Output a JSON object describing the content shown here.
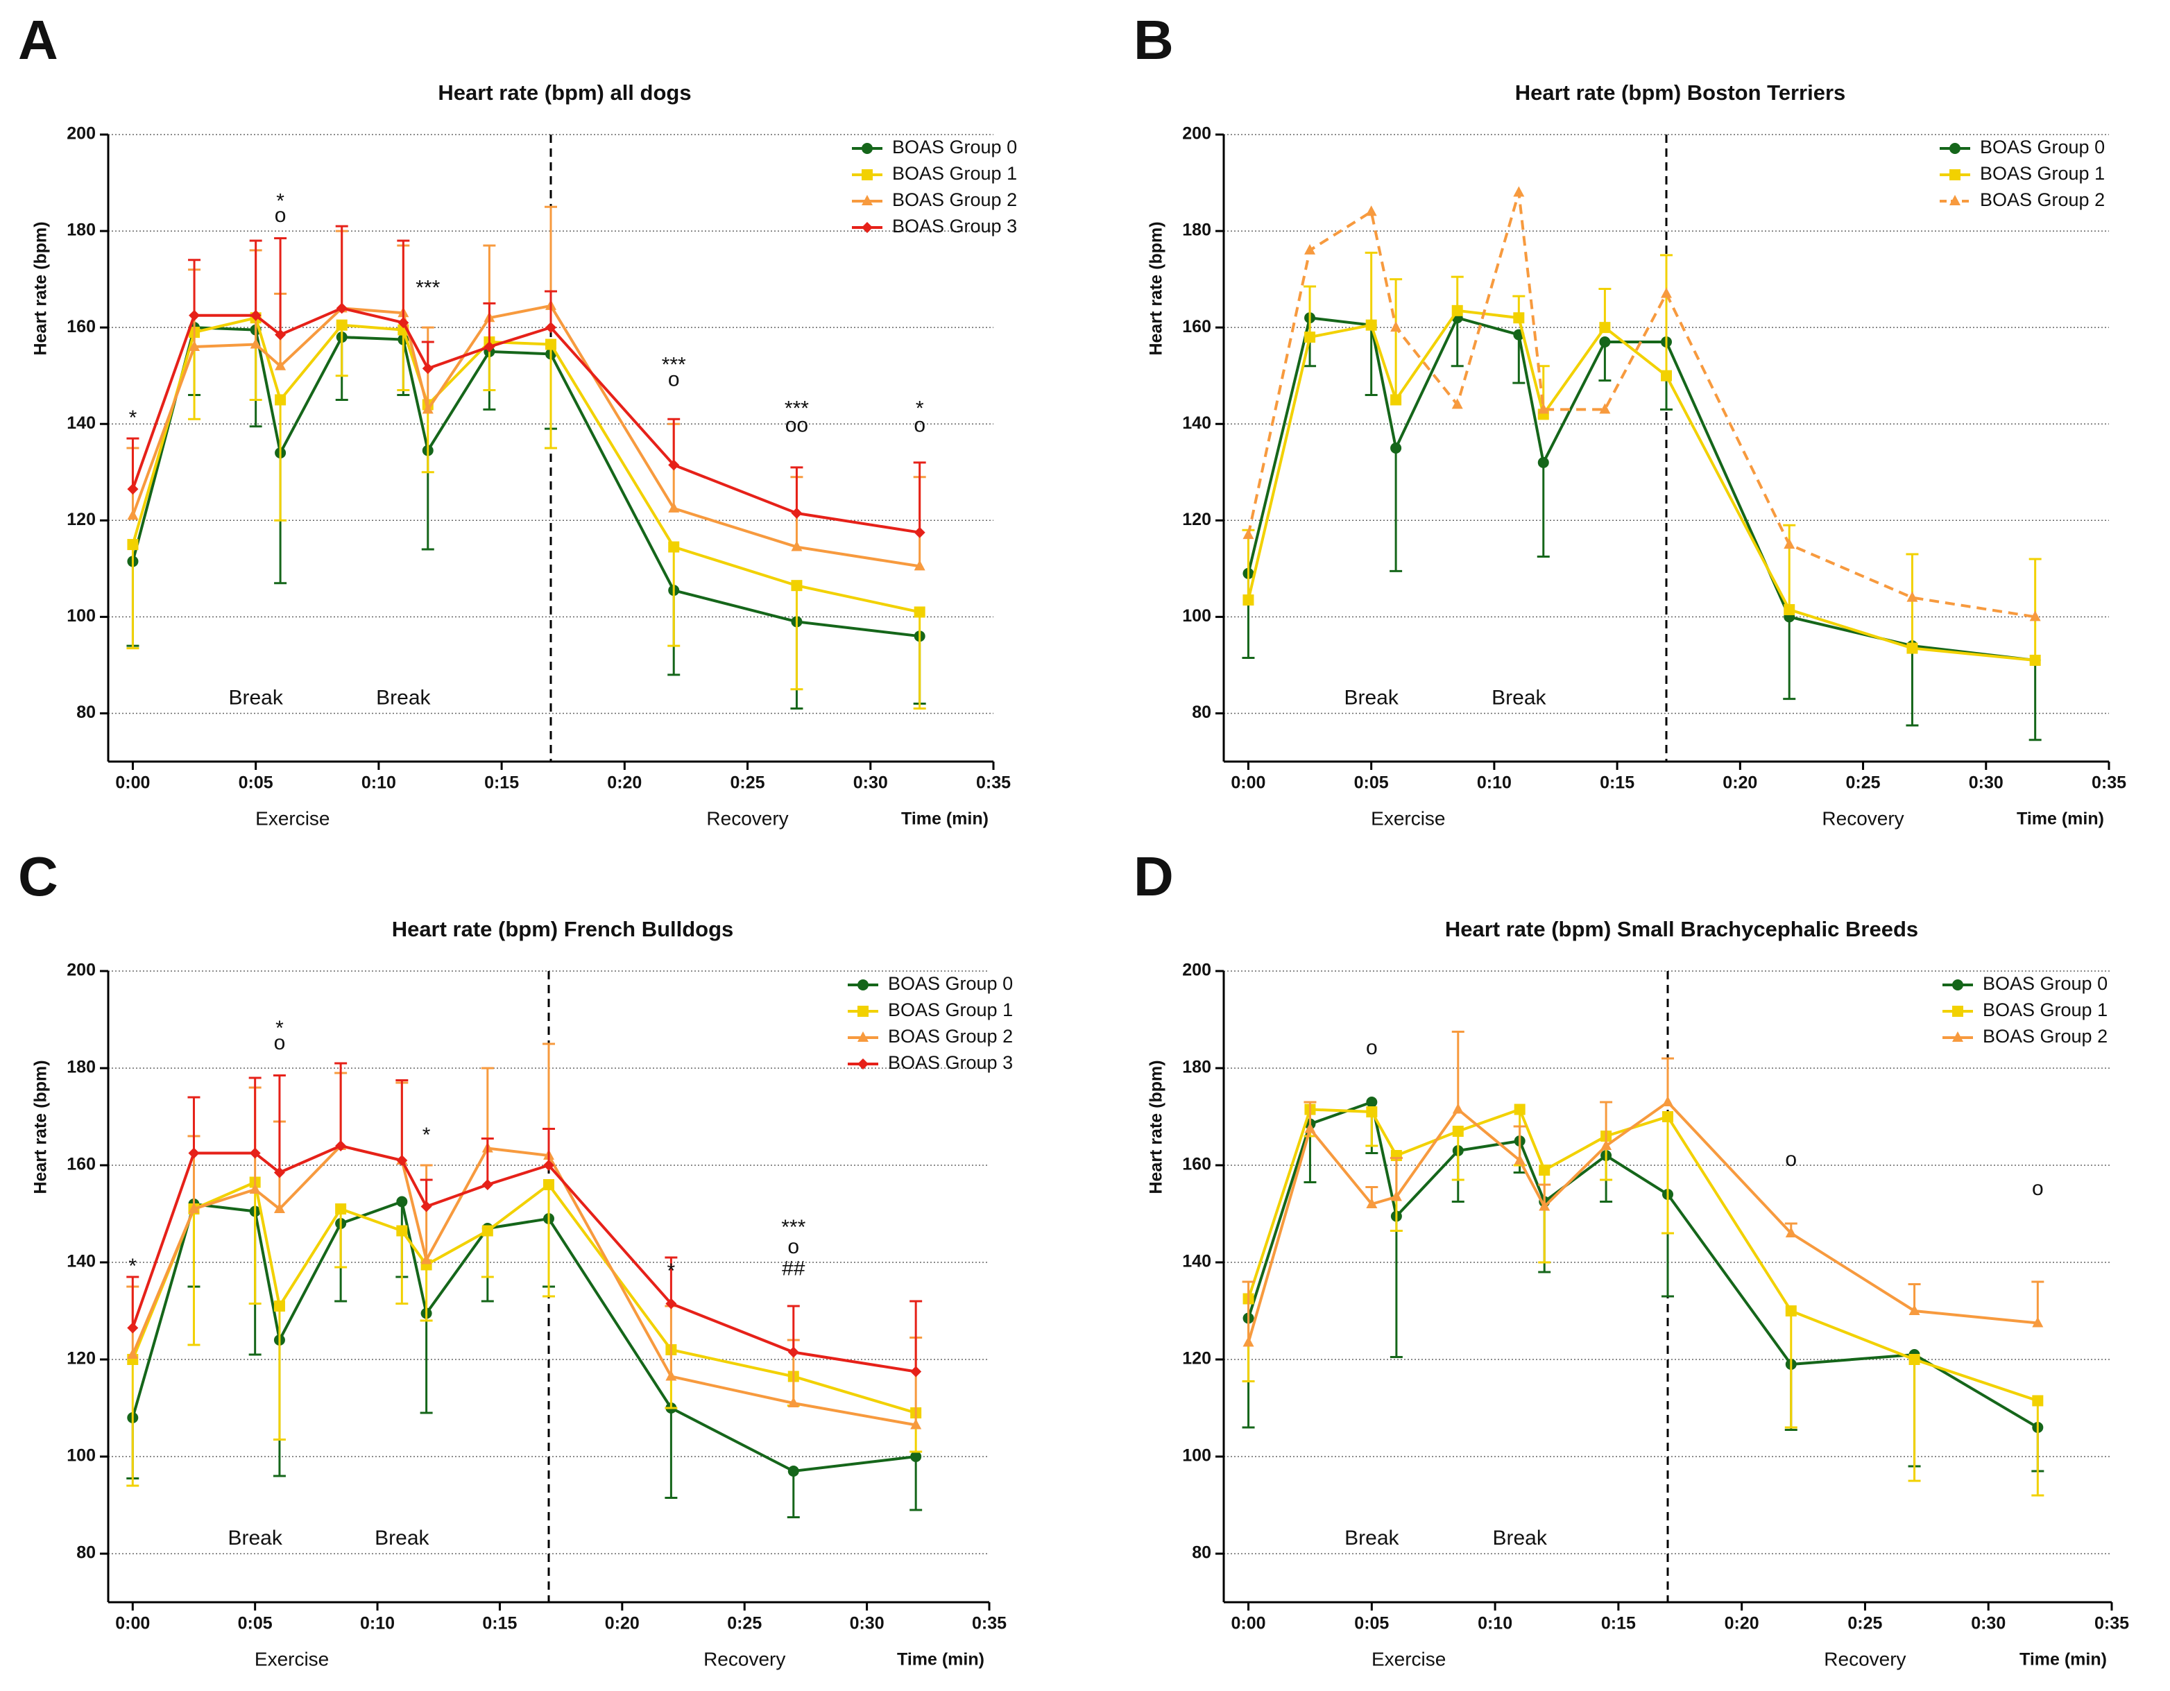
{
  "chart_data": [
    {
      "type": "line",
      "panel": "A",
      "title": "Heart rate (bpm) all dogs",
      "ylabel": "Heart rate (bpm)",
      "xlabel": "Time (min)",
      "grid": true,
      "legend": "upper right",
      "x": [
        0,
        2.5,
        5,
        6,
        8.5,
        11,
        12,
        14.5,
        17,
        22,
        27,
        32
      ],
      "divider_x": 17,
      "xlim": [
        -1,
        35
      ],
      "xticks": [
        {
          "value": 0,
          "label": "0:00"
        },
        {
          "value": 5,
          "label": "0:05"
        },
        {
          "value": 10,
          "label": "0:10"
        },
        {
          "value": 15,
          "label": "0:15"
        },
        {
          "value": 20,
          "label": "0:20"
        },
        {
          "value": 25,
          "label": "0:25"
        },
        {
          "value": 30,
          "label": "0:30"
        },
        {
          "value": 35,
          "label": "0:35"
        }
      ],
      "ylim": [
        70,
        200
      ],
      "yticks": [
        80,
        100,
        120,
        140,
        160,
        180,
        200
      ],
      "phase_labels": [
        {
          "text": "Exercise",
          "x": 6.5
        },
        {
          "text": "Recovery",
          "x": 25
        }
      ],
      "series": [
        {
          "name": "BOAS Group 0",
          "color": "#15661a",
          "marker": "circle",
          "error_direction": "down",
          "values": [
            111.5,
            160,
            159.5,
            134,
            158,
            157.5,
            134.5,
            155,
            154.5,
            105.5,
            99,
            96
          ],
          "errors": [
            17.5,
            14,
            20,
            27,
            13,
            11.5,
            20.5,
            12,
            15.5,
            17.5,
            18,
            14
          ]
        },
        {
          "name": "BOAS Group 1",
          "color": "#f2d100",
          "marker": "square",
          "error_direction": "down",
          "values": [
            115,
            159,
            162,
            145,
            160.5,
            159.5,
            144,
            157,
            156.5,
            114.5,
            106.5,
            101
          ],
          "errors": [
            21.5,
            18,
            17,
            25,
            10.5,
            12.5,
            14,
            10,
            21.5,
            20.5,
            21.5,
            20
          ]
        },
        {
          "name": "BOAS Group 2",
          "color": "#f79a3e",
          "marker": "triangle",
          "error_direction": "up",
          "values": [
            121,
            156,
            156.5,
            152,
            164,
            163,
            143,
            162,
            164.5,
            122.5,
            114.5,
            110.5
          ],
          "errors": [
            14,
            16,
            19.5,
            15,
            16,
            14,
            17,
            15,
            20.5,
            17.5,
            14.5,
            18.5
          ]
        },
        {
          "name": "BOAS Group 3",
          "color": "#e62119",
          "marker": "diamond",
          "error_direction": "up",
          "values": [
            126.5,
            162.5,
            162.5,
            158.5,
            164,
            161,
            151.5,
            156,
            160,
            131.5,
            121.5,
            117.5
          ],
          "errors": [
            10.5,
            11.5,
            15.5,
            20,
            17,
            17,
            5.5,
            9,
            7.5,
            9.5,
            9.5,
            14.5
          ]
        }
      ],
      "annotations": [
        {
          "text": "*",
          "x": 0,
          "y": 141
        },
        {
          "text": "*",
          "x": 6,
          "y": 186
        },
        {
          "text": "o",
          "x": 6,
          "y": 183
        },
        {
          "text": "***",
          "x": 12,
          "y": 168
        },
        {
          "text": "***",
          "x": 22,
          "y": 152
        },
        {
          "text": "o",
          "x": 22,
          "y": 149
        },
        {
          "text": "***",
          "x": 27,
          "y": 143
        },
        {
          "text": "oo",
          "x": 27,
          "y": 139.5
        },
        {
          "text": "*",
          "x": 32,
          "y": 143
        },
        {
          "text": "o",
          "x": 32,
          "y": 139.5
        },
        {
          "text": "Break",
          "x": 5,
          "y": 83
        },
        {
          "text": "Break",
          "x": 11,
          "y": 83
        }
      ]
    },
    {
      "type": "line",
      "panel": "B",
      "title": "Heart rate (bpm) Boston Terriers",
      "ylabel": "Heart rate (bpm)",
      "xlabel": "Time (min)",
      "grid": true,
      "legend": "upper right",
      "x": [
        0,
        2.5,
        5,
        6,
        8.5,
        11,
        12,
        14.5,
        17,
        22,
        27,
        32
      ],
      "divider_x": 17,
      "xlim": [
        -1,
        35
      ],
      "xticks": [
        {
          "value": 0,
          "label": "0:00"
        },
        {
          "value": 5,
          "label": "0:05"
        },
        {
          "value": 10,
          "label": "0:10"
        },
        {
          "value": 15,
          "label": "0:15"
        },
        {
          "value": 20,
          "label": "0:20"
        },
        {
          "value": 25,
          "label": "0:25"
        },
        {
          "value": 30,
          "label": "0:30"
        },
        {
          "value": 35,
          "label": "0:35"
        }
      ],
      "ylim": [
        70,
        200
      ],
      "yticks": [
        80,
        100,
        120,
        140,
        160,
        180,
        200
      ],
      "phase_labels": [
        {
          "text": "Exercise",
          "x": 6.5
        },
        {
          "text": "Recovery",
          "x": 25
        }
      ],
      "series": [
        {
          "name": "BOAS Group 0",
          "color": "#15661a",
          "marker": "circle",
          "error_direction": "down",
          "values": [
            109,
            162,
            160.5,
            135,
            162,
            158.5,
            132,
            157,
            157,
            100,
            94,
            91
          ],
          "errors": [
            17.5,
            10,
            14.5,
            25.5,
            10,
            10,
            19.5,
            8,
            14,
            17,
            16.5,
            16.5
          ]
        },
        {
          "name": "BOAS Group 1",
          "color": "#f2d100",
          "marker": "square",
          "error_direction": "up",
          "values": [
            103.5,
            158,
            160.5,
            145,
            163.5,
            162,
            142,
            160,
            150,
            101.5,
            93.5,
            91
          ],
          "errors": [
            14.5,
            10.5,
            15,
            25,
            7,
            4.5,
            10,
            8,
            25,
            17.5,
            19.5,
            21
          ]
        },
        {
          "name": "BOAS Group 2",
          "color": "#f79a3e",
          "marker": "triangle",
          "dashed": true,
          "values": [
            117,
            176,
            184,
            160,
            144,
            188,
            143,
            143,
            167,
            115,
            104,
            100
          ]
        }
      ],
      "annotations": [
        {
          "text": "Break",
          "x": 5,
          "y": 83
        },
        {
          "text": "Break",
          "x": 11,
          "y": 83
        }
      ]
    },
    {
      "type": "line",
      "panel": "C",
      "title": "Heart rate (bpm) French Bulldogs",
      "ylabel": "Heart rate (bpm)",
      "xlabel": "Time (min)",
      "grid": true,
      "legend": "upper right",
      "x": [
        0,
        2.5,
        5,
        6,
        8.5,
        11,
        12,
        14.5,
        17,
        22,
        27,
        32
      ],
      "divider_x": 17,
      "xlim": [
        -1,
        35
      ],
      "xticks": [
        {
          "value": 0,
          "label": "0:00"
        },
        {
          "value": 5,
          "label": "0:05"
        },
        {
          "value": 10,
          "label": "0:10"
        },
        {
          "value": 15,
          "label": "0:15"
        },
        {
          "value": 20,
          "label": "0:20"
        },
        {
          "value": 25,
          "label": "0:25"
        },
        {
          "value": 30,
          "label": "0:30"
        },
        {
          "value": 35,
          "label": "0:35"
        }
      ],
      "ylim": [
        70,
        200
      ],
      "yticks": [
        80,
        100,
        120,
        140,
        160,
        180,
        200
      ],
      "phase_labels": [
        {
          "text": "Exercise",
          "x": 6.5
        },
        {
          "text": "Recovery",
          "x": 25
        }
      ],
      "series": [
        {
          "name": "BOAS Group 0",
          "color": "#15661a",
          "marker": "circle",
          "error_direction": "down",
          "values": [
            108,
            152,
            150.5,
            124,
            148,
            152.5,
            129.5,
            147,
            149,
            110,
            97,
            100
          ],
          "errors": [
            12.5,
            17,
            29.5,
            28,
            16,
            15.5,
            20.5,
            15,
            14,
            18.5,
            9.5,
            11
          ]
        },
        {
          "name": "BOAS Group 1",
          "color": "#f2d100",
          "marker": "square",
          "error_direction": "down",
          "values": [
            120,
            151,
            156.5,
            131,
            151,
            146.5,
            139.5,
            146.5,
            156,
            122,
            116.5,
            109
          ],
          "errors": [
            26,
            28,
            25,
            27.5,
            12,
            15,
            11.5,
            9.5,
            23,
            12,
            6,
            8
          ]
        },
        {
          "name": "BOAS Group 2",
          "color": "#f79a3e",
          "marker": "triangle",
          "error_direction": "up",
          "values": [
            121,
            151,
            155,
            151,
            164,
            161,
            140.5,
            163.5,
            162,
            116.5,
            111,
            106.5
          ],
          "errors": [
            14,
            15,
            21,
            18,
            15,
            16,
            19.5,
            16.5,
            23,
            14.5,
            13,
            18
          ]
        },
        {
          "name": "BOAS Group 3",
          "color": "#e62119",
          "marker": "diamond",
          "error_direction": "up",
          "values": [
            126.5,
            162.5,
            162.5,
            158.5,
            164,
            161,
            151.5,
            156,
            160,
            131.5,
            121.5,
            117.5
          ],
          "errors": [
            10.5,
            11.5,
            15.5,
            20,
            17,
            16.5,
            5.5,
            9.5,
            7.5,
            9.5,
            9.5,
            14.5
          ]
        }
      ],
      "annotations": [
        {
          "text": "*",
          "x": 0,
          "y": 139
        },
        {
          "text": "*",
          "x": 6,
          "y": 188
        },
        {
          "text": "o",
          "x": 6,
          "y": 185
        },
        {
          "text": "*",
          "x": 12,
          "y": 166
        },
        {
          "text": "*",
          "x": 22,
          "y": 138
        },
        {
          "text": "***",
          "x": 27,
          "y": 147
        },
        {
          "text": "o",
          "x": 27,
          "y": 143
        },
        {
          "text": "##",
          "x": 27,
          "y": 138.5
        },
        {
          "text": "Break",
          "x": 5,
          "y": 83
        },
        {
          "text": "Break",
          "x": 11,
          "y": 83
        }
      ]
    },
    {
      "type": "line",
      "panel": "D",
      "title": "Heart rate (bpm) Small Brachycephalic Breeds",
      "ylabel": "Heart rate (bpm)",
      "xlabel": "Time (min)",
      "grid": true,
      "legend": "upper right",
      "x": [
        0,
        2.5,
        5,
        6,
        8.5,
        11,
        12,
        14.5,
        17,
        22,
        27,
        32
      ],
      "divider_x": 17,
      "xlim": [
        -1,
        35
      ],
      "xticks": [
        {
          "value": 0,
          "label": "0:00"
        },
        {
          "value": 5,
          "label": "0:05"
        },
        {
          "value": 10,
          "label": "0:10"
        },
        {
          "value": 15,
          "label": "0:15"
        },
        {
          "value": 20,
          "label": "0:20"
        },
        {
          "value": 25,
          "label": "0:25"
        },
        {
          "value": 30,
          "label": "0:30"
        },
        {
          "value": 35,
          "label": "0:35"
        }
      ],
      "ylim": [
        70,
        200
      ],
      "yticks": [
        80,
        100,
        120,
        140,
        160,
        180,
        200
      ],
      "phase_labels": [
        {
          "text": "Exercise",
          "x": 6.5
        },
        {
          "text": "Recovery",
          "x": 25
        }
      ],
      "series": [
        {
          "name": "BOAS Group 0",
          "color": "#15661a",
          "marker": "circle",
          "error_direction": "down",
          "values": [
            128.5,
            168.5,
            173,
            149.5,
            163,
            165,
            152.5,
            162,
            154,
            119,
            121,
            106
          ],
          "errors": [
            22.5,
            12,
            10.5,
            29,
            10.5,
            6.5,
            14.5,
            9.5,
            21,
            13.5,
            23,
            9
          ]
        },
        {
          "name": "BOAS Group 1",
          "color": "#f2d100",
          "marker": "square",
          "error_direction": "down",
          "values": [
            132.5,
            171.5,
            171,
            162,
            167,
            171.5,
            159,
            166,
            170,
            130,
            120,
            111.5
          ],
          "errors": [
            17,
            5.5,
            7,
            15.5,
            10,
            11.5,
            19,
            9,
            24,
            24,
            25,
            19.5
          ]
        },
        {
          "name": "BOAS Group 2",
          "color": "#f79a3e",
          "marker": "triangle",
          "error_direction": "up",
          "values": [
            123.5,
            167.5,
            152,
            153.5,
            171.5,
            161,
            151.5,
            164,
            173,
            146,
            130,
            127.5
          ],
          "errors": [
            12.5,
            5.5,
            3.5,
            8,
            16,
            7,
            4.5,
            9,
            9,
            2,
            5.5,
            8.5
          ]
        }
      ],
      "annotations": [
        {
          "text": "o",
          "x": 5,
          "y": 184
        },
        {
          "text": "o",
          "x": 22,
          "y": 161
        },
        {
          "text": "o",
          "x": 32,
          "y": 155
        },
        {
          "text": "Break",
          "x": 5,
          "y": 83
        },
        {
          "text": "Break",
          "x": 11,
          "y": 83
        }
      ]
    }
  ]
}
